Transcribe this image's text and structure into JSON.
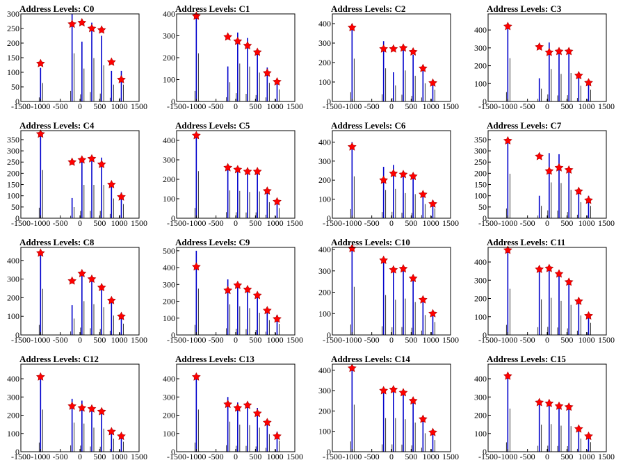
{
  "chart_data": [
    {
      "type": "bar",
      "title": "Address Levels: C0",
      "xlim": [
        -1500,
        1500
      ],
      "ylim": [
        0,
        300
      ],
      "yticks": [
        0,
        50,
        100,
        150,
        200,
        250,
        300
      ],
      "x": [
        -1000,
        -200,
        50,
        300,
        550,
        800,
        1050
      ],
      "peaks": [
        115,
        300,
        205,
        270,
        225,
        105,
        105
      ],
      "markers": [
        130,
        265,
        270,
        250,
        245,
        135,
        75
      ]
    },
    {
      "type": "bar",
      "title": "Address Levels: C1",
      "xlim": [
        -1500,
        1500
      ],
      "ylim": [
        0,
        400
      ],
      "yticks": [
        0,
        100,
        200,
        300,
        400
      ],
      "x": [
        -1000,
        -200,
        50,
        300,
        550,
        800,
        1050
      ],
      "peaks": [
        400,
        160,
        315,
        290,
        240,
        155,
        100
      ],
      "markers": [
        390,
        295,
        275,
        255,
        225,
        130,
        90
      ]
    },
    {
      "type": "bar",
      "title": "Address Levels: C2",
      "xlim": [
        -1500,
        1500
      ],
      "ylim": [
        0,
        450
      ],
      "yticks": [
        0,
        100,
        200,
        300,
        400
      ],
      "x": [
        -1000,
        -200,
        50,
        300,
        550,
        800,
        1050
      ],
      "peaks": [
        400,
        310,
        150,
        290,
        240,
        170,
        110
      ],
      "markers": [
        380,
        270,
        270,
        275,
        255,
        170,
        95
      ]
    },
    {
      "type": "bar",
      "title": "Address Levels: C3",
      "xlim": [
        -1500,
        1500
      ],
      "ylim": [
        0,
        490
      ],
      "yticks": [
        0,
        100,
        200,
        300,
        400
      ],
      "x": [
        -1000,
        -200,
        50,
        300,
        550,
        800,
        1050
      ],
      "peaks": [
        440,
        130,
        330,
        280,
        290,
        160,
        120
      ],
      "markers": [
        420,
        305,
        275,
        280,
        280,
        145,
        105
      ]
    },
    {
      "type": "bar",
      "title": "Address Levels: C4",
      "xlim": [
        -1500,
        1500
      ],
      "ylim": [
        0,
        390
      ],
      "yticks": [
        0,
        50,
        100,
        150,
        200,
        250,
        300,
        350
      ],
      "x": [
        -1000,
        -200,
        50,
        300,
        550,
        800,
        1050
      ],
      "peaks": [
        390,
        90,
        270,
        270,
        270,
        160,
        115
      ],
      "markers": [
        375,
        250,
        260,
        265,
        240,
        150,
        95
      ]
    },
    {
      "type": "bar",
      "title": "Address Levels: C5",
      "xlim": [
        -1500,
        1500
      ],
      "ylim": [
        0,
        450
      ],
      "yticks": [
        0,
        100,
        200,
        300,
        400
      ],
      "x": [
        -1000,
        -200,
        50,
        300,
        550,
        800,
        1050
      ],
      "peaks": [
        440,
        260,
        255,
        245,
        250,
        150,
        95
      ],
      "markers": [
        425,
        260,
        250,
        240,
        240,
        140,
        85
      ]
    },
    {
      "type": "bar",
      "title": "Address Levels: C6",
      "xlim": [
        -1500,
        1500
      ],
      "ylim": [
        0,
        460
      ],
      "yticks": [
        0,
        100,
        200,
        300,
        400
      ],
      "x": [
        -1000,
        -200,
        50,
        300,
        550,
        800,
        1050
      ],
      "peaks": [
        400,
        270,
        280,
        240,
        230,
        135,
        95
      ],
      "markers": [
        375,
        200,
        235,
        230,
        220,
        125,
        75
      ]
    },
    {
      "type": "bar",
      "title": "Address Levels: C7",
      "xlim": [
        -1500,
        1500
      ],
      "ylim": [
        0,
        390
      ],
      "yticks": [
        0,
        50,
        100,
        150,
        200,
        250,
        300,
        350
      ],
      "x": [
        -1000,
        -200,
        50,
        300,
        550,
        800,
        1050
      ],
      "peaks": [
        360,
        100,
        290,
        285,
        230,
        130,
        100
      ],
      "markers": [
        345,
        275,
        210,
        225,
        215,
        120,
        80
      ]
    },
    {
      "type": "bar",
      "title": "Address Levels: C8",
      "xlim": [
        -1500,
        1500
      ],
      "ylim": [
        0,
        470
      ],
      "yticks": [
        0,
        100,
        200,
        300,
        400
      ],
      "x": [
        -1000,
        -200,
        50,
        300,
        550,
        800,
        1050
      ],
      "peaks": [
        450,
        160,
        330,
        300,
        270,
        190,
        110
      ],
      "markers": [
        440,
        290,
        330,
        300,
        255,
        185,
        100
      ]
    },
    {
      "type": "bar",
      "title": "Address Levels: C9",
      "xlim": [
        -1500,
        1500
      ],
      "ylim": [
        0,
        520
      ],
      "yticks": [
        0,
        100,
        200,
        300,
        400,
        500
      ],
      "x": [
        -1000,
        -200,
        50,
        300,
        550,
        800,
        1050
      ],
      "peaks": [
        500,
        330,
        310,
        290,
        240,
        160,
        120
      ],
      "markers": [
        405,
        265,
        295,
        270,
        235,
        145,
        95
      ]
    },
    {
      "type": "bar",
      "title": "Address Levels: C10",
      "xlim": [
        -1500,
        1500
      ],
      "ylim": [
        0,
        410
      ],
      "yticks": [
        0,
        100,
        200,
        300,
        400
      ],
      "x": [
        -1000,
        -200,
        50,
        300,
        550,
        800,
        1050
      ],
      "peaks": [
        410,
        340,
        300,
        310,
        280,
        170,
        110
      ],
      "markers": [
        405,
        350,
        305,
        310,
        265,
        165,
        100
      ]
    },
    {
      "type": "bar",
      "title": "Address Levels: C11",
      "xlim": [
        -1500,
        1500
      ],
      "ylim": [
        0,
        480
      ],
      "yticks": [
        0,
        100,
        200,
        300,
        400
      ],
      "x": [
        -1000,
        -200,
        50,
        300,
        550,
        800,
        1050
      ],
      "peaks": [
        460,
        355,
        370,
        340,
        300,
        195,
        120
      ],
      "markers": [
        465,
        360,
        365,
        335,
        290,
        185,
        105
      ]
    },
    {
      "type": "bar",
      "title": "Address Levels: C12",
      "xlim": [
        -1500,
        1500
      ],
      "ylim": [
        0,
        480
      ],
      "yticks": [
        0,
        100,
        200,
        300,
        400
      ],
      "x": [
        -1000,
        -200,
        50,
        300,
        550,
        800,
        1050
      ],
      "peaks": [
        420,
        290,
        280,
        240,
        230,
        130,
        100
      ],
      "markers": [
        410,
        250,
        240,
        235,
        220,
        110,
        85
      ]
    },
    {
      "type": "bar",
      "title": "Address Levels: C13",
      "xlim": [
        -1500,
        1500
      ],
      "ylim": [
        0,
        480
      ],
      "yticks": [
        0,
        100,
        200,
        300,
        400
      ],
      "x": [
        -1000,
        -200,
        50,
        300,
        550,
        800,
        1050
      ],
      "peaks": [
        420,
        300,
        270,
        265,
        240,
        175,
        110
      ],
      "markers": [
        410,
        260,
        240,
        255,
        210,
        160,
        85
      ]
    },
    {
      "type": "bar",
      "title": "Address Levels: C14",
      "xlim": [
        -1500,
        1500
      ],
      "ylim": [
        0,
        430
      ],
      "yticks": [
        0,
        100,
        200,
        300,
        400
      ],
      "x": [
        -1000,
        -200,
        50,
        300,
        550,
        800,
        1050
      ],
      "peaks": [
        420,
        300,
        300,
        290,
        260,
        165,
        105
      ],
      "markers": [
        410,
        300,
        305,
        290,
        250,
        160,
        95
      ]
    },
    {
      "type": "bar",
      "title": "Address Levels: C15",
      "xlim": [
        -1500,
        1500
      ],
      "ylim": [
        0,
        480
      ],
      "yticks": [
        0,
        100,
        200,
        300,
        400
      ],
      "x": [
        -1000,
        -200,
        50,
        300,
        550,
        800,
        1050
      ],
      "peaks": [
        430,
        270,
        275,
        260,
        255,
        130,
        95
      ],
      "markers": [
        415,
        270,
        265,
        250,
        245,
        125,
        85
      ]
    }
  ],
  "xticks": [
    -1500,
    -1000,
    -500,
    0,
    500,
    1000,
    1500
  ],
  "colors": {
    "bar": "#0000cc",
    "marker": "#ff0000",
    "axis": "#000000"
  }
}
